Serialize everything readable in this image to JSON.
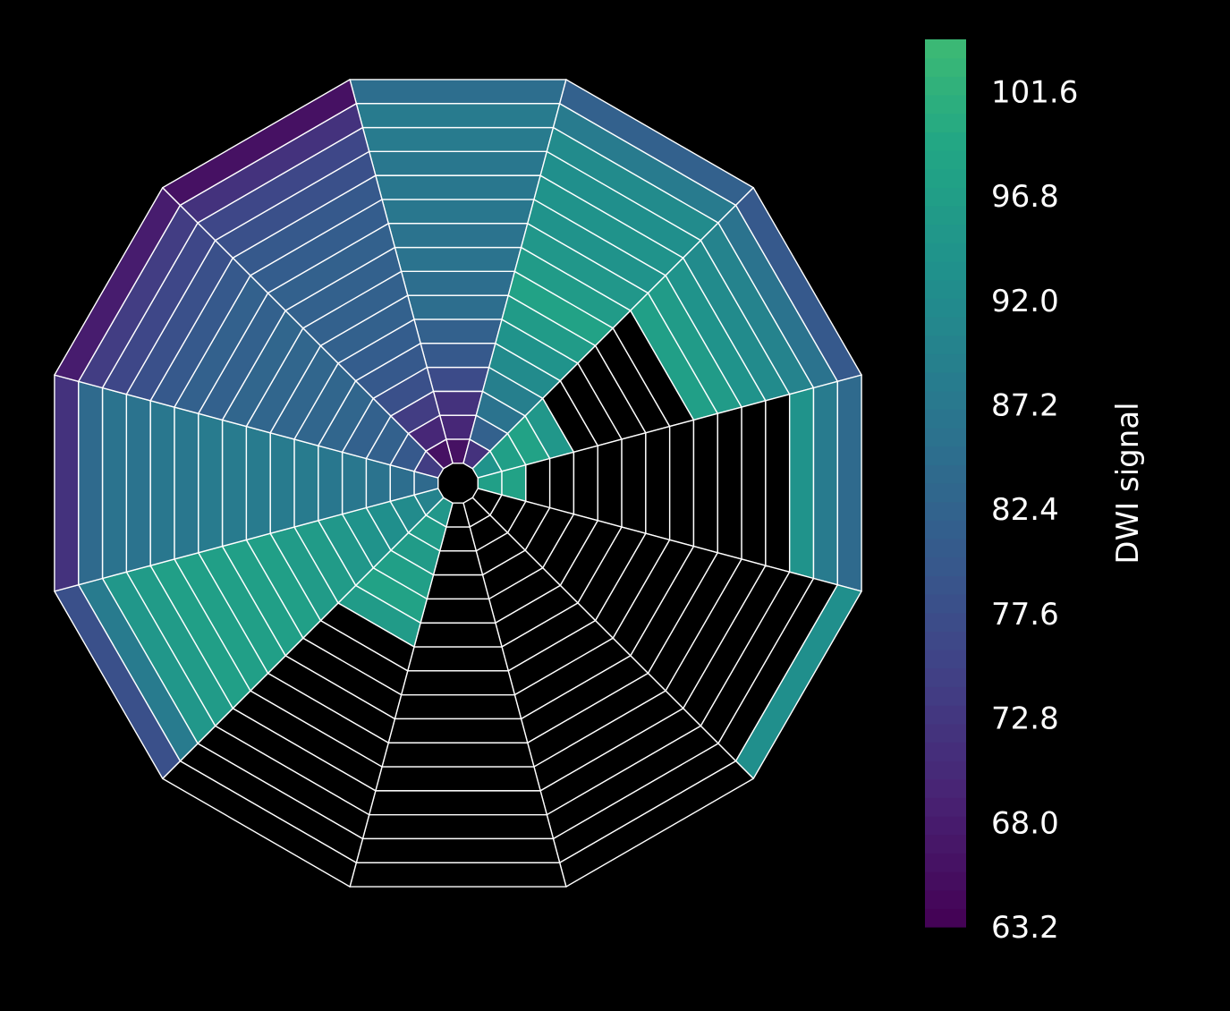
{
  "chart_data": {
    "type": "heatmap",
    "subtype": "bullseye",
    "title": "",
    "n_sectors": 12,
    "n_rings": 16,
    "null_color": "#000000",
    "edge_color": "#ffffff",
    "background": "#000000",
    "colormap": "viridis",
    "colorbar": {
      "label": "DWI signal",
      "range": [
        63.2,
        104.0
      ],
      "ticks": [
        "63.2",
        "68.0",
        "72.8",
        "77.6",
        "82.4",
        "87.2",
        "92.0",
        "96.8",
        "101.6"
      ],
      "tick_values": [
        63.2,
        68.0,
        72.8,
        77.6,
        82.4,
        87.2,
        92.0,
        96.8,
        101.6
      ]
    },
    "sectors": [
      {
        "sector": 1,
        "values": [
          66,
          70,
          72,
          77,
          80,
          82,
          85,
          85,
          86,
          86,
          87,
          87,
          87,
          88,
          88,
          85
        ]
      },
      {
        "sector": 2,
        "values": [
          72,
          82,
          86,
          89,
          92,
          94,
          96,
          98,
          96,
          95,
          94,
          94,
          93,
          92,
          88,
          82
        ]
      },
      {
        "sector": 3,
        "values": [
          94,
          97,
          98,
          95,
          null,
          null,
          null,
          null,
          null,
          97,
          96,
          94,
          92,
          90,
          86,
          80
        ]
      },
      {
        "sector": 4,
        "values": [
          97,
          98,
          null,
          null,
          null,
          null,
          null,
          null,
          null,
          null,
          null,
          null,
          null,
          94,
          88,
          84
        ]
      },
      {
        "sector": 5,
        "values": [
          null,
          null,
          null,
          null,
          null,
          null,
          null,
          null,
          null,
          null,
          null,
          null,
          null,
          null,
          null,
          93
        ]
      },
      {
        "sector": 6,
        "values": [
          null,
          null,
          null,
          null,
          null,
          null,
          null,
          null,
          null,
          null,
          null,
          null,
          null,
          null,
          null,
          null
        ]
      },
      {
        "sector": 7,
        "values": [
          null,
          null,
          null,
          null,
          null,
          null,
          null,
          null,
          null,
          null,
          null,
          null,
          null,
          null,
          null,
          null
        ]
      },
      {
        "sector": 8,
        "values": [
          95,
          96,
          96,
          97,
          98,
          96,
          null,
          null,
          null,
          null,
          null,
          null,
          null,
          null,
          null,
          null
        ]
      },
      {
        "sector": 9,
        "values": [
          90,
          92,
          93,
          94,
          95,
          96,
          96,
          97,
          97,
          97,
          97,
          97,
          96,
          95,
          88,
          78
        ]
      },
      {
        "sector": 10,
        "values": [
          84,
          85,
          86,
          87,
          87,
          88,
          88,
          88,
          88,
          88,
          87,
          87,
          86,
          86,
          84,
          72
        ]
      },
      {
        "sector": 11,
        "values": [
          74,
          80,
          82,
          82,
          83,
          83,
          83,
          83,
          83,
          82,
          82,
          80,
          78,
          76,
          74,
          68
        ]
      },
      {
        "sector": 12,
        "values": [
          66,
          70,
          74,
          78,
          80,
          81,
          82,
          82,
          82,
          82,
          81,
          80,
          78,
          76,
          72,
          66
        ]
      }
    ]
  }
}
